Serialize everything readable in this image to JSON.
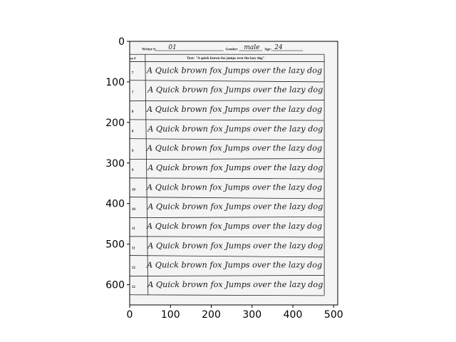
{
  "chart_data": {
    "type": "image",
    "xlim": [
      0,
      510
    ],
    "ylim": [
      650,
      0
    ],
    "x_ticks": [
      0,
      100,
      200,
      300,
      400,
      500
    ],
    "y_ticks": [
      0,
      100,
      200,
      300,
      400,
      500,
      600
    ],
    "x_tick_labels": [
      "0",
      "100",
      "200",
      "300",
      "400",
      "500"
    ],
    "y_tick_labels": [
      "0",
      "100",
      "200",
      "300",
      "400",
      "500",
      "600"
    ],
    "image_extent": [
      0,
      510,
      650,
      0
    ]
  },
  "form": {
    "writer_label": "Writer #:",
    "writer_value": "01",
    "gender_label": "Gender:",
    "gender_value": "male",
    "age_label": "Age:",
    "age_value": "24",
    "column_header": "se #",
    "text_header": "Text: \"A quick brown fox jumps over the lazy dog\"",
    "rows": [
      {
        "num": "7",
        "text": "A  Quick  brown  fox  Jumps  over  the  lazy  dog"
      },
      {
        "num": "7",
        "text": "A  Quick  brown  fox  Jumps  over  the  lazy  dog"
      },
      {
        "num": "8",
        "text": "A  Quick  brown  fox  Jumps  over  the  lazy  dog"
      },
      {
        "num": "8",
        "text": "A  Quick  brown  fox  Jumps  over  the  lazy  dog"
      },
      {
        "num": "9",
        "text": "A  Quick  brown  fox  Jumps  over  the  lazy  dog"
      },
      {
        "num": "9",
        "text": "A  Quick  brown  fox  Jumps  over  the  lazy  dog"
      },
      {
        "num": "10",
        "text": "A  Quick  brown  fox  Jumps  over  the  lazy  dog"
      },
      {
        "num": "10",
        "text": "A  Quick  brown  fox  Jumps  over  the  lazy  dog"
      },
      {
        "num": "11",
        "text": "A  Quick  brown  fox  Jumps  over  the  lazy  dog"
      },
      {
        "num": "11",
        "text": "A  Quick  brown  fox  Jumps  over  the  lazy  dog"
      },
      {
        "num": "12",
        "text": "A  Quick  brown  fox  Jumps  over  the  lazy  dog"
      },
      {
        "num": "12",
        "text": "A  Quick  brown  fox  Jumps  over  the  lazy  dog"
      }
    ]
  }
}
